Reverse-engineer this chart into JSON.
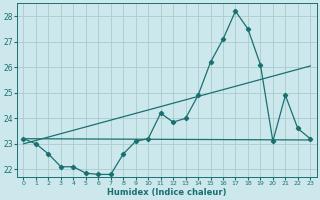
{
  "xlabel": "Humidex (Indice chaleur)",
  "bg_color": "#cce8ec",
  "grid_color": "#aacccc",
  "line_color": "#1a7070",
  "xlim": [
    -0.5,
    23.5
  ],
  "ylim": [
    21.7,
    28.5
  ],
  "yticks": [
    22,
    23,
    24,
    25,
    26,
    27,
    28
  ],
  "xticks": [
    0,
    1,
    2,
    3,
    4,
    5,
    6,
    7,
    8,
    9,
    10,
    11,
    12,
    13,
    14,
    15,
    16,
    17,
    18,
    19,
    20,
    21,
    22,
    23
  ],
  "line1_x": [
    0,
    1,
    2,
    3,
    4,
    5,
    6,
    7,
    8,
    9,
    10,
    11,
    12,
    13,
    14,
    15,
    16,
    17,
    18,
    19,
    20,
    21,
    22,
    23
  ],
  "line1_y": [
    23.2,
    23.0,
    22.6,
    22.1,
    22.1,
    21.85,
    21.8,
    21.8,
    22.6,
    23.1,
    23.2,
    24.2,
    23.85,
    24.0,
    24.9,
    26.2,
    27.1,
    28.2,
    27.5,
    26.1,
    23.1,
    24.9,
    23.6,
    23.2
  ],
  "line2_x": [
    0,
    23
  ],
  "line2_y": [
    23.2,
    23.15
  ],
  "line3_x": [
    0,
    23
  ],
  "line3_y": [
    23.0,
    26.05
  ]
}
